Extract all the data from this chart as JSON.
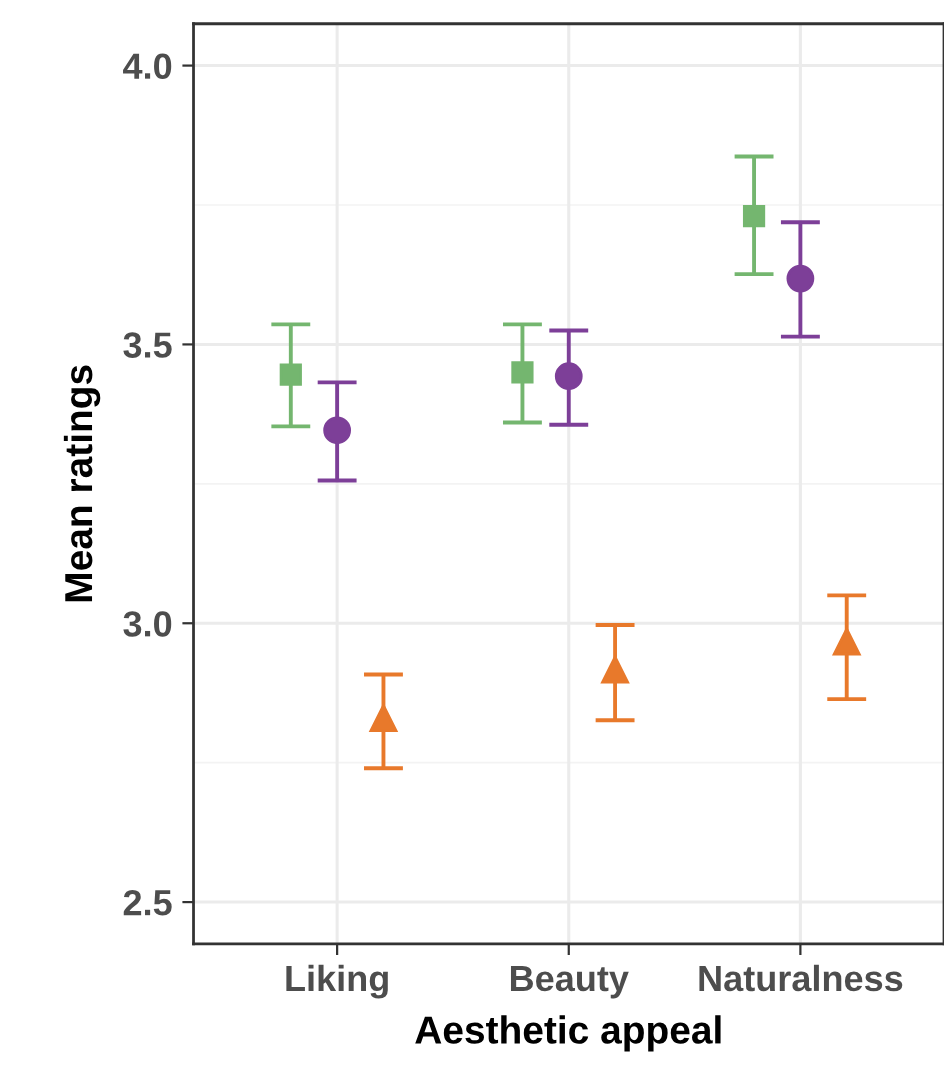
{
  "chart_data": {
    "type": "scatter",
    "xlabel": "Aesthetic appeal",
    "ylabel": "Mean ratings",
    "categories": [
      "Liking",
      "Beauty",
      "Naturalness"
    ],
    "series": [
      {
        "color": "#74b66f",
        "marker": "square",
        "values": [
          3.446,
          3.45,
          3.73
        ],
        "errors": [
          [
            3.353,
            3.536
          ],
          [
            3.36,
            3.536
          ],
          [
            3.626,
            3.837
          ]
        ]
      },
      {
        "color": "#7d3f98",
        "marker": "circle",
        "values": [
          3.346,
          3.443,
          3.618
        ],
        "errors": [
          [
            3.256,
            3.432
          ],
          [
            3.356,
            3.525
          ],
          [
            3.514,
            3.719
          ]
        ]
      },
      {
        "color": "#e8792b",
        "marker": "triangle",
        "values": [
          2.83,
          2.917,
          2.967
        ],
        "errors": [
          [
            2.74,
            2.908
          ],
          [
            2.826,
            2.997
          ],
          [
            2.864,
            3.05
          ]
        ]
      }
    ],
    "ylim": [
      2.425,
      4.075
    ],
    "yticks": [
      {
        "value": 2.5,
        "label": "2.5"
      },
      {
        "value": 3.0,
        "label": "3.0"
      },
      {
        "value": 3.5,
        "label": "3.5"
      },
      {
        "value": 4.0,
        "label": "4.0"
      }
    ],
    "grid": true,
    "legend": false
  }
}
